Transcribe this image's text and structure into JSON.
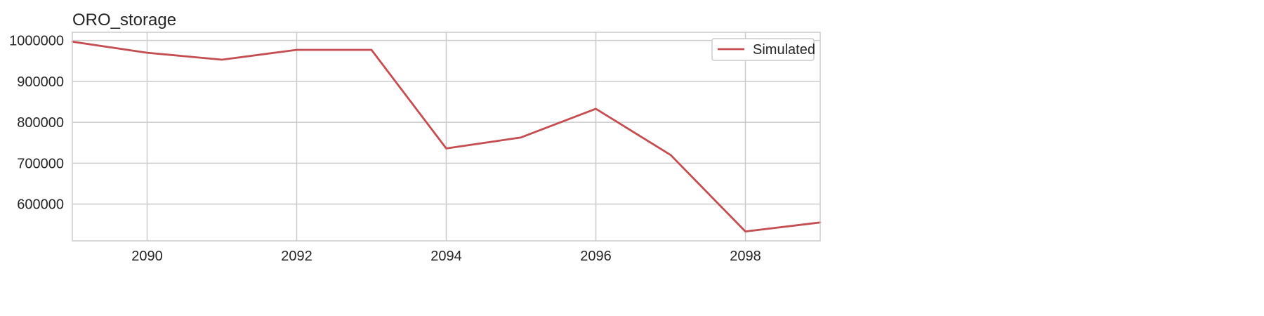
{
  "chart_data": {
    "type": "line",
    "title": "ORO_storage",
    "xlabel": "",
    "ylabel": "",
    "xlim": [
      2089,
      2099
    ],
    "ylim": [
      510000,
      1020000
    ],
    "x_ticks": [
      2090,
      2092,
      2094,
      2096,
      2098
    ],
    "y_ticks": [
      600000,
      700000,
      800000,
      900000,
      1000000
    ],
    "grid": true,
    "legend_position": "top-right",
    "series": [
      {
        "name": "Simulated",
        "color": "#c44e52",
        "x": [
          2089,
          2090,
          2091,
          2092,
          2093,
          2094,
          2095,
          2096,
          2097,
          2098,
          2099
        ],
        "y": [
          997000,
          970000,
          953000,
          977000,
          977000,
          736000,
          763000,
          833000,
          720000,
          533000,
          555000
        ]
      }
    ]
  }
}
